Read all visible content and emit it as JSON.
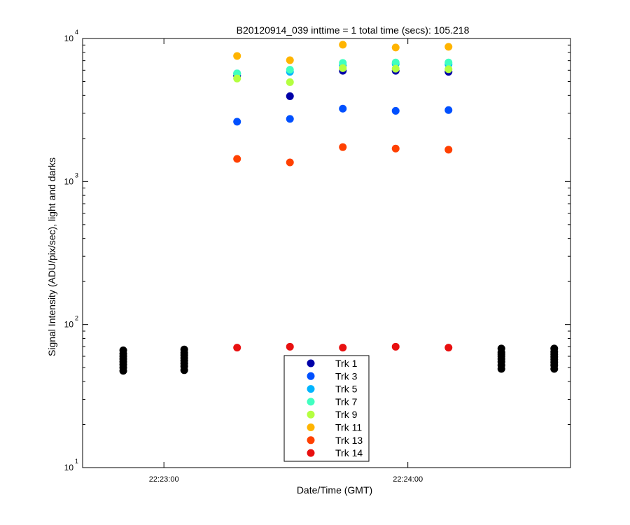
{
  "chart_data": {
    "type": "scatter",
    "title": "B20120914_039 inttime = 1 total time (secs): 105.218",
    "xlabel": "Date/Time (GMT)",
    "ylabel": "Signal Intensity (ADU/pix/sec), light and darks",
    "x_scale": "time",
    "y_scale": "log",
    "xlim": [
      "22:22:40",
      "22:24:40"
    ],
    "ylim": [
      10,
      10000
    ],
    "x_ticks": [
      "22:23:00",
      "22:24:00"
    ],
    "y_ticks": [
      {
        "base": "10",
        "exp": "1",
        "value": 10
      },
      {
        "base": "10",
        "exp": "2",
        "value": 100
      },
      {
        "base": "10",
        "exp": "3",
        "value": 1000
      },
      {
        "base": "10",
        "exp": "4",
        "value": 10000
      }
    ],
    "grid": false,
    "legend": {
      "position": "bottom-center"
    },
    "series": [
      {
        "name": "Trk 1",
        "color": "#0000a8",
        "points": [
          [
            "22:23:18",
            5500
          ],
          [
            "22:23:31",
            3950
          ],
          [
            "22:23:44",
            5950
          ],
          [
            "22:23:57",
            5950
          ],
          [
            "22:24:10",
            5850
          ]
        ]
      },
      {
        "name": "Trk 3",
        "color": "#0050ff",
        "points": [
          [
            "22:23:18",
            2620
          ],
          [
            "22:23:31",
            2740
          ],
          [
            "22:23:44",
            3230
          ],
          [
            "22:23:57",
            3120
          ],
          [
            "22:24:10",
            3160
          ]
        ]
      },
      {
        "name": "Trk 5",
        "color": "#00b4ff",
        "points": [
          [
            "22:23:18",
            5700
          ],
          [
            "22:23:31",
            5850
          ],
          [
            "22:23:44",
            6500
          ],
          [
            "22:23:57",
            6650
          ],
          [
            "22:24:10",
            6600
          ]
        ]
      },
      {
        "name": "Trk 7",
        "color": "#40ffc0",
        "points": [
          [
            "22:23:18",
            5700
          ],
          [
            "22:23:31",
            6050
          ],
          [
            "22:23:44",
            6750
          ],
          [
            "22:23:57",
            6800
          ],
          [
            "22:24:10",
            6800
          ]
        ]
      },
      {
        "name": "Trk 9",
        "color": "#b4ff40",
        "points": [
          [
            "22:23:18",
            5250
          ],
          [
            "22:23:31",
            4950
          ],
          [
            "22:23:44",
            6200
          ],
          [
            "22:23:57",
            6150
          ],
          [
            "22:24:10",
            6100
          ]
        ]
      },
      {
        "name": "Trk 11",
        "color": "#ffb400",
        "points": [
          [
            "22:23:18",
            7550
          ],
          [
            "22:23:31",
            7050
          ],
          [
            "22:23:44",
            9050
          ],
          [
            "22:23:57",
            8650
          ],
          [
            "22:24:10",
            8750
          ]
        ]
      },
      {
        "name": "Trk 13",
        "color": "#ff4000",
        "points": [
          [
            "22:23:18",
            1440
          ],
          [
            "22:23:31",
            1360
          ],
          [
            "22:23:44",
            1740
          ],
          [
            "22:23:57",
            1700
          ],
          [
            "22:24:10",
            1670
          ]
        ]
      },
      {
        "name": "Trk 14",
        "color": "#e81010",
        "points": [
          [
            "22:23:18",
            69
          ],
          [
            "22:23:31",
            70
          ],
          [
            "22:23:44",
            69
          ],
          [
            "22:23:57",
            70
          ],
          [
            "22:24:10",
            69
          ]
        ]
      }
    ],
    "dark_series": {
      "color": "#000000",
      "points": [
        [
          "22:22:50",
          47.5
        ],
        [
          "22:22:50",
          50
        ],
        [
          "22:22:50",
          52.5
        ],
        [
          "22:22:50",
          55
        ],
        [
          "22:22:50",
          57.5
        ],
        [
          "22:22:50",
          60
        ],
        [
          "22:22:50",
          62.5
        ],
        [
          "22:22:50",
          66
        ],
        [
          "22:23:05",
          48
        ],
        [
          "22:23:05",
          51
        ],
        [
          "22:23:05",
          53.5
        ],
        [
          "22:23:05",
          56
        ],
        [
          "22:23:05",
          58.5
        ],
        [
          "22:23:05",
          61
        ],
        [
          "22:23:05",
          63.5
        ],
        [
          "22:23:05",
          67
        ],
        [
          "22:24:23",
          49
        ],
        [
          "22:24:23",
          52
        ],
        [
          "22:24:23",
          55
        ],
        [
          "22:24:23",
          57.5
        ],
        [
          "22:24:23",
          60
        ],
        [
          "22:24:23",
          62
        ],
        [
          "22:24:23",
          64
        ],
        [
          "22:24:23",
          68
        ],
        [
          "22:24:36",
          49
        ],
        [
          "22:24:36",
          52
        ],
        [
          "22:24:36",
          54.5
        ],
        [
          "22:24:36",
          57
        ],
        [
          "22:24:36",
          59.5
        ],
        [
          "22:24:36",
          62
        ],
        [
          "22:24:36",
          64.5
        ],
        [
          "22:24:36",
          68
        ]
      ]
    }
  }
}
